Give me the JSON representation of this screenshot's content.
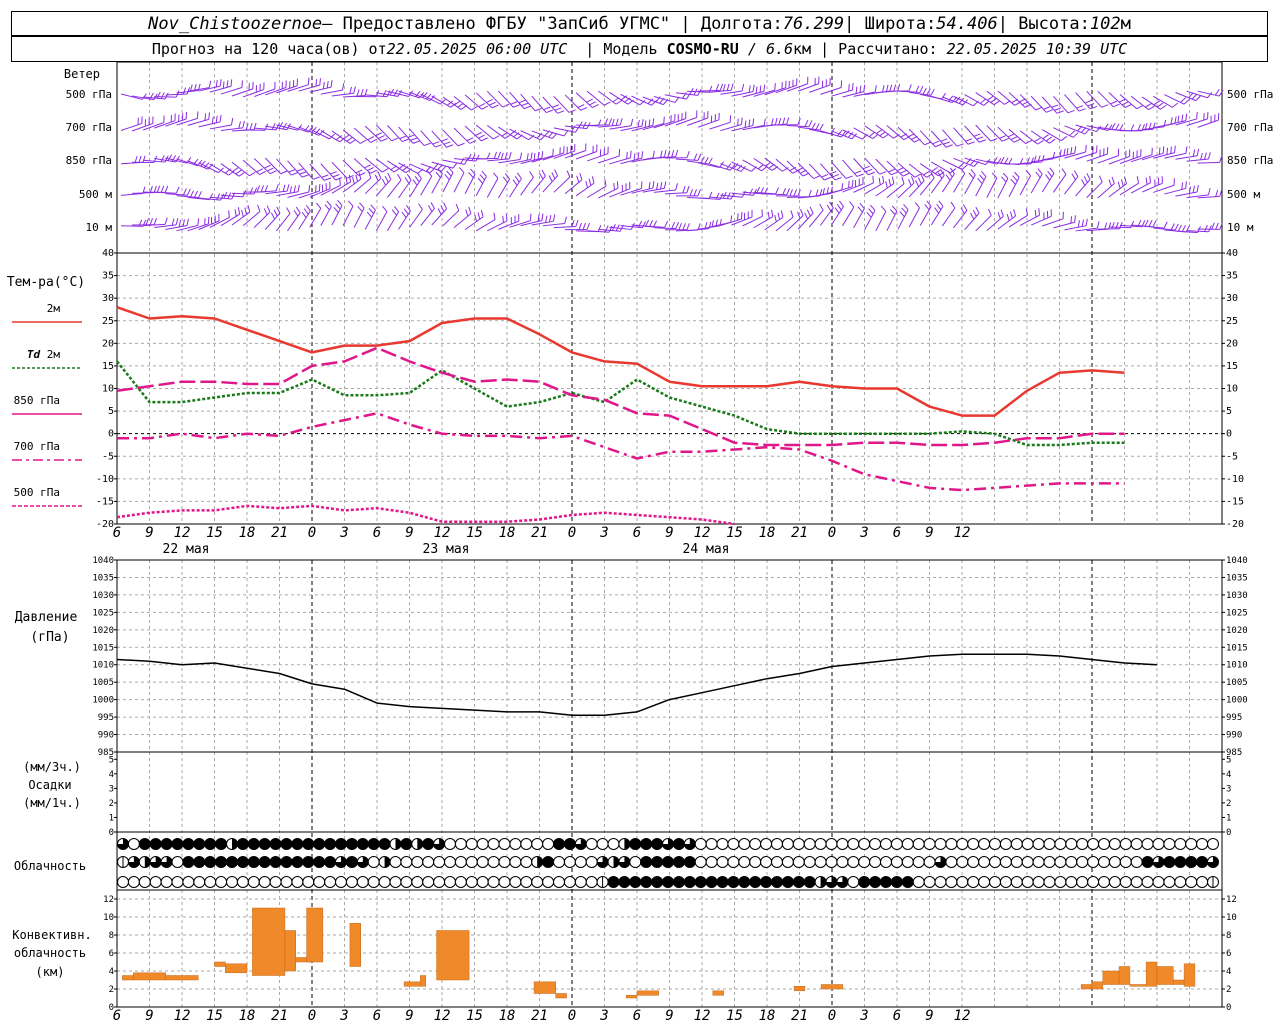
{
  "header": {
    "station": "Nov_Chistoozernoe",
    "sep1": " – Предоставлено ФГБУ \"ЗапСиб УГМС\" | Долгота: ",
    "lon": "76.299",
    "sep2": " | Широта: ",
    "lat": "54.406",
    "sep3": " | Высота: ",
    "alt": "102",
    "alt_unit": "м",
    "forecast_prefix": "Прогноз на 120 часа(ов) от ",
    "run_time": "22.05.2025 06:00 UTC",
    "model_prefix": "  | Модель ",
    "model": "COSMO-RU",
    "res_sep": " / ",
    "resolution": "6.6",
    "res_unit": "км",
    "calc_prefix": " | Рассчитано: ",
    "calc_time": "22.05.2025 10:39 UTC"
  },
  "colors": {
    "wind": "#8a2be2",
    "t2m": "#e8382f",
    "td2m": "#1a7a1a",
    "t850": "#e0178a",
    "pressure": "#000000",
    "convective": "#f0892a",
    "grid": "#999999"
  },
  "hour_ticks": [
    "6",
    "9",
    "12",
    "15",
    "18",
    "21",
    "0",
    "3",
    "6",
    "9",
    "12",
    "15",
    "18",
    "21",
    "0",
    "3",
    "6",
    "9",
    "12",
    "15",
    "18",
    "21",
    "0",
    "3",
    "6",
    "9",
    "12"
  ],
  "day_labels": [
    "22 мая",
    "23 мая",
    "24 мая"
  ],
  "wind_panel": {
    "title": "Ветер",
    "levels": [
      "500 гПа",
      "700 гПа",
      "850 гПа",
      "500  м",
      "10   м"
    ]
  },
  "temp_panel": {
    "title": "Тем-ра(°C)",
    "yticks": [
      "40",
      "35",
      "30",
      "25",
      "20",
      "15",
      "10",
      "5",
      "0",
      "-5",
      "-10",
      "-15",
      "-20"
    ],
    "legend": [
      {
        "pre": "",
        "em": "",
        "text": "2м"
      },
      {
        "pre": "",
        "em": "Td",
        "text": " 2м"
      },
      {
        "pre": "",
        "em": "",
        "text": "850 гПа"
      },
      {
        "pre": "",
        "em": "",
        "text": "700 гПа"
      },
      {
        "pre": "",
        "em": "",
        "text": "500 гПа"
      }
    ]
  },
  "pressure_panel": {
    "title": "Давление",
    "unit": "(гПа)",
    "yticks": [
      "1040",
      "1035",
      "1030",
      "1025",
      "1020",
      "1015",
      "1010",
      "1005",
      "1000",
      "995",
      "990",
      "985"
    ]
  },
  "precip_panel": {
    "unit3": "(мм/3ч.)",
    "title": "Осадки",
    "unit1": "(мм/1ч.)",
    "yticks": [
      "5",
      "4",
      "3",
      "2",
      "1",
      "0"
    ]
  },
  "cloud_panel": {
    "title": "Облачность"
  },
  "conv_panel": {
    "title1": "Конвективн.",
    "title2": "облачность",
    "unit": "(км)",
    "yticks": [
      "12",
      "10",
      "8",
      "6",
      "4",
      "2",
      "0"
    ]
  },
  "chart_data": [
    {
      "type": "line",
      "title": "Тем-ра(°C)",
      "x_start_hour": 6,
      "x_step_hours": 3,
      "ylim": [
        -20,
        40
      ],
      "grid": true,
      "series": [
        {
          "name": "2м",
          "style": "solid",
          "color": "#e8382f",
          "values": [
            28,
            25.5,
            26,
            25.5,
            23,
            20.5,
            18,
            19.5,
            19.5,
            20.5,
            24.5,
            25.5,
            25.5,
            22,
            18,
            16,
            15.5,
            11.5,
            10.5,
            10.5,
            10.5,
            11.5,
            10.5,
            10,
            10,
            6,
            4,
            4,
            9.5,
            13.5,
            14,
            13.5
          ]
        },
        {
          "name": "Td 2м",
          "style": "dotted",
          "color": "#1a7a1a",
          "values": [
            16,
            7,
            7,
            8,
            9,
            9,
            12,
            8.5,
            8.5,
            9,
            14,
            10,
            6,
            7,
            9,
            7,
            12,
            8,
            6,
            4,
            1,
            0,
            0,
            0,
            0,
            0,
            0.5,
            0,
            -2.5,
            -2.5,
            -2,
            -2
          ]
        },
        {
          "name": "850 гПа",
          "style": "dashed",
          "color": "#e0178a",
          "values": [
            9.5,
            10.5,
            11.5,
            11.5,
            11,
            11,
            15,
            16,
            19,
            16,
            13.5,
            11.5,
            12,
            11.5,
            8.5,
            7.5,
            4.5,
            4,
            1,
            -2,
            -2.5,
            -2.5,
            -2.5,
            -2,
            -2,
            -2.5,
            -2.5,
            -2,
            -1,
            -1,
            0,
            0
          ]
        },
        {
          "name": "700 гПа",
          "style": "dashdot",
          "color": "#e0178a",
          "values": [
            -1,
            -1,
            0,
            -1,
            0,
            -0.5,
            1.5,
            3,
            4.5,
            2,
            0,
            -0.5,
            -0.5,
            -1,
            -0.5,
            -3,
            -5.5,
            -4,
            -4,
            -3.5,
            -3,
            -3.5,
            -6,
            -9,
            -10.5,
            -12,
            -12.5,
            -12,
            -11.5,
            -11,
            -11,
            -11
          ]
        },
        {
          "name": "500 гПа",
          "style": "dotted",
          "color": "#e0178a",
          "values": [
            -18.5,
            -17.5,
            -17,
            -17,
            -16,
            -16.5,
            -16,
            -17,
            -16.5,
            -17.5,
            -19.5,
            -19.5,
            -19.5,
            -19,
            -18,
            -17.5,
            -18,
            -18.5,
            -19,
            -20
          ]
        }
      ]
    },
    {
      "type": "line",
      "title": "Давление",
      "x_start_hour": 6,
      "x_step_hours": 3,
      "ylim": [
        985,
        1040
      ],
      "grid": true,
      "series": [
        {
          "name": "Давление",
          "style": "solid",
          "color": "#000000",
          "values": [
            1011.5,
            1011,
            1010,
            1010.5,
            1009,
            1007.5,
            1004.5,
            1003,
            999,
            998,
            997.5,
            997,
            996.5,
            996.5,
            995.5,
            995.5,
            996.5,
            1000,
            1002,
            1004,
            1006,
            1007.5,
            1009.5,
            1010.5,
            1011.5,
            1012.5,
            1013,
            1013,
            1013,
            1012.5,
            1011.5,
            1010.5,
            1010
          ]
        }
      ]
    },
    {
      "type": "bar",
      "title": "Конвективн. облачность",
      "ylim": [
        0,
        13
      ],
      "grid": true,
      "bars": [
        {
          "x_hour": 6.5,
          "x_end": 7.5,
          "y_bottom": 3,
          "y_top": 3.5
        },
        {
          "x_hour": 7.5,
          "x_end": 10.5,
          "y_bottom": 3,
          "y_top": 3.8
        },
        {
          "x_hour": 10.5,
          "x_end": 13.5,
          "y_bottom": 3,
          "y_top": 3.5
        },
        {
          "x_hour": 15,
          "x_end": 16,
          "y_bottom": 4.5,
          "y_top": 5
        },
        {
          "x_hour": 16,
          "x_end": 18,
          "y_bottom": 3.8,
          "y_top": 4.8
        },
        {
          "x_hour": 18.5,
          "x_end": 21.5,
          "y_bottom": 3.5,
          "y_top": 11
        },
        {
          "x_hour": 21.5,
          "x_end": 22.5,
          "y_bottom": 4,
          "y_top": 8.5
        },
        {
          "x_hour": 22.5,
          "x_end": 24,
          "y_bottom": 5,
          "y_top": 5.5
        },
        {
          "x_hour": 23.5,
          "x_end": 25,
          "y_bottom": 5,
          "y_top": 11
        },
        {
          "x_hour": 27.5,
          "x_end": 28.5,
          "y_bottom": 4.5,
          "y_top": 9.3
        },
        {
          "x_hour": 32.5,
          "x_end": 34,
          "y_bottom": 2.3,
          "y_top": 2.8
        },
        {
          "x_hour": 34,
          "x_end": 34.5,
          "y_bottom": 2.3,
          "y_top": 3.5
        },
        {
          "x_hour": 35.5,
          "x_end": 38.5,
          "y_bottom": 3,
          "y_top": 8.5
        },
        {
          "x_hour": 44.5,
          "x_end": 46.5,
          "y_bottom": 1.5,
          "y_top": 2.8
        },
        {
          "x_hour": 46.5,
          "x_end": 47.5,
          "y_bottom": 1,
          "y_top": 1.5
        },
        {
          "x_hour": 53,
          "x_end": 54,
          "y_bottom": 1,
          "y_top": 1.3
        },
        {
          "x_hour": 54,
          "x_end": 56,
          "y_bottom": 1.3,
          "y_top": 1.8
        },
        {
          "x_hour": 61,
          "x_end": 62,
          "y_bottom": 1.3,
          "y_top": 1.8
        },
        {
          "x_hour": 68.5,
          "x_end": 69.5,
          "y_bottom": 1.8,
          "y_top": 2.3
        },
        {
          "x_hour": 71,
          "x_end": 73,
          "y_bottom": 2,
          "y_top": 2.5
        },
        {
          "x_hour": 95,
          "x_end": 96,
          "y_bottom": 2,
          "y_top": 2.5
        },
        {
          "x_hour": 96,
          "x_end": 97,
          "y_bottom": 2,
          "y_top": 2.8
        },
        {
          "x_hour": 97,
          "x_end": 98.5,
          "y_bottom": 2.5,
          "y_top": 4
        },
        {
          "x_hour": 98.5,
          "x_end": 99.5,
          "y_bottom": 2.5,
          "y_top": 4.5
        },
        {
          "x_hour": 99.5,
          "x_end": 101,
          "y_bottom": 2.3,
          "y_top": 2.5
        },
        {
          "x_hour": 101,
          "x_end": 102,
          "y_bottom": 2.3,
          "y_top": 5
        },
        {
          "x_hour": 102,
          "x_end": 103.5,
          "y_bottom": 2.5,
          "y_top": 4.5
        },
        {
          "x_hour": 103.5,
          "x_end": 104.5,
          "y_bottom": 2.5,
          "y_top": 3
        },
        {
          "x_hour": 104.5,
          "x_end": 105.5,
          "y_bottom": 2.3,
          "y_top": 4.8
        }
      ]
    },
    {
      "type": "table",
      "title": "Облачность",
      "note": "cloud cover per hour for low, middle, high rows (0=clear,1=quarter,2=half,3=three-quarter,4=overcast)",
      "rows": [
        [
          3,
          0,
          4,
          4,
          4,
          4,
          4,
          4,
          4,
          4,
          2,
          4,
          4,
          4,
          4,
          4,
          4,
          4,
          4,
          4,
          4,
          4,
          4,
          4,
          4,
          2,
          4,
          2,
          4,
          3,
          0,
          0,
          0,
          0,
          0,
          0,
          0,
          0,
          0,
          0,
          4,
          4,
          3,
          0,
          0,
          0,
          2,
          4,
          4,
          4,
          3,
          4,
          3,
          0,
          0,
          0,
          0,
          0,
          0,
          0,
          0,
          0,
          0,
          0,
          0,
          0,
          0,
          0,
          0,
          0,
          0,
          0,
          0,
          0,
          0,
          0,
          0,
          0,
          0,
          0,
          0,
          0,
          0,
          0,
          0,
          0,
          0,
          0,
          0,
          0,
          0,
          0,
          0,
          0,
          0,
          0,
          0,
          0,
          0,
          0,
          0
        ],
        [
          1,
          3,
          2,
          3,
          3,
          0,
          4,
          4,
          4,
          4,
          4,
          4,
          4,
          4,
          4,
          4,
          4,
          4,
          4,
          4,
          3,
          4,
          3,
          0,
          2,
          0,
          0,
          0,
          0,
          0,
          0,
          0,
          0,
          0,
          0,
          0,
          0,
          0,
          2,
          4,
          0,
          0,
          0,
          0,
          3,
          2,
          3,
          0,
          4,
          4,
          4,
          4,
          4,
          0,
          0,
          0,
          0,
          0,
          0,
          0,
          0,
          0,
          0,
          0,
          0,
          0,
          0,
          0,
          0,
          0,
          0,
          0,
          0,
          0,
          0,
          3,
          0,
          0,
          0,
          0,
          0,
          0,
          0,
          0,
          0,
          0,
          0,
          0,
          0,
          0,
          0,
          0,
          0,
          0,
          4,
          3,
          4,
          4,
          4,
          4,
          3,
          4
        ],
        [
          0,
          0,
          0,
          0,
          0,
          0,
          0,
          0,
          0,
          0,
          0,
          0,
          0,
          0,
          0,
          0,
          0,
          0,
          0,
          0,
          0,
          0,
          0,
          0,
          0,
          0,
          0,
          0,
          0,
          0,
          0,
          0,
          0,
          0,
          0,
          0,
          0,
          0,
          0,
          0,
          0,
          0,
          0,
          0,
          1,
          4,
          4,
          4,
          4,
          4,
          4,
          4,
          4,
          4,
          4,
          4,
          4,
          4,
          4,
          4,
          4,
          4,
          4,
          4,
          2,
          3,
          3,
          0,
          4,
          4,
          4,
          4,
          4,
          0,
          0,
          0,
          0,
          0,
          0,
          0,
          0,
          0,
          0,
          0,
          0,
          0,
          0,
          0,
          0,
          0,
          0,
          0,
          0,
          0,
          0,
          0,
          0,
          0,
          0,
          0,
          1
        ]
      ]
    }
  ]
}
